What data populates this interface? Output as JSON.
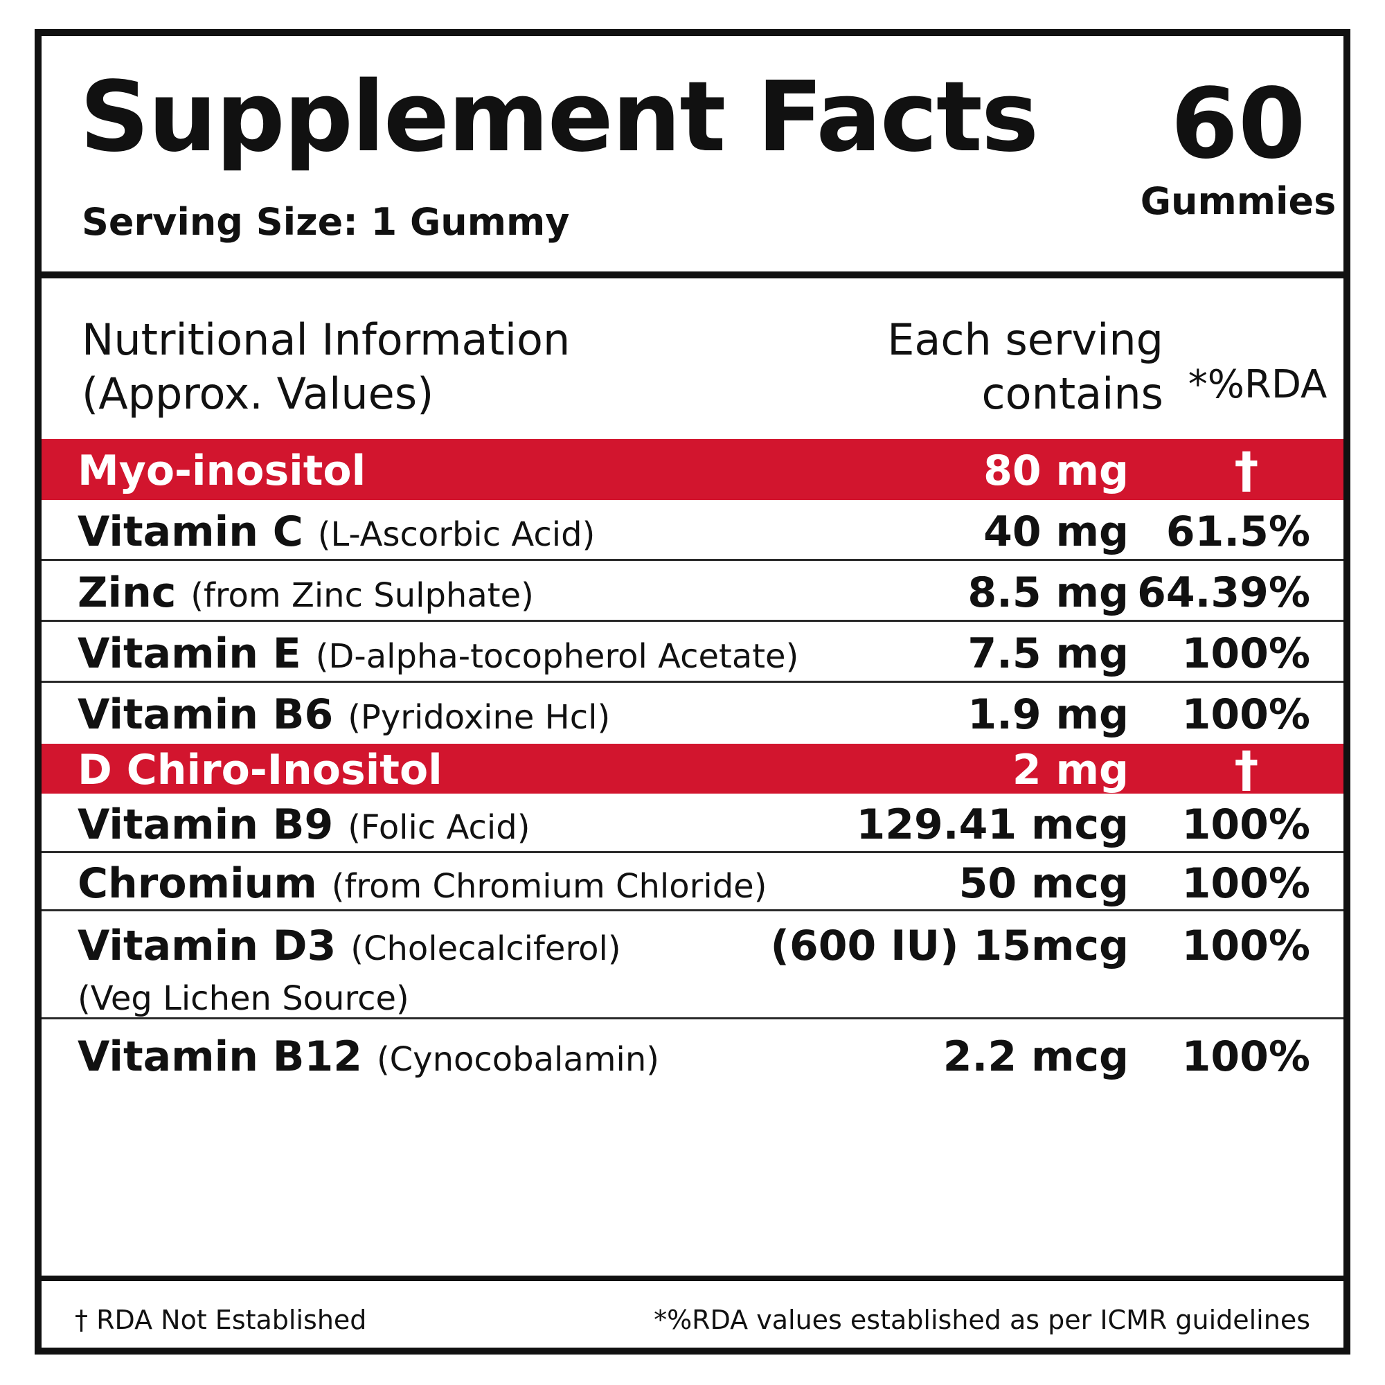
{
  "header": {
    "title": "Supplement Facts",
    "serving_size": "Serving Size: 1 Gummy",
    "count": "60",
    "count_unit": "Gummies"
  },
  "columns": {
    "nutritional_line1": "Nutritional Information",
    "nutritional_line2": "(Approx. Values)",
    "each_line1": "Each serving",
    "each_line2": "contains",
    "rda": "*%RDA"
  },
  "rows": [
    {
      "name": "Myo-inositol",
      "sub": "",
      "sub2": "",
      "amount": "80 mg",
      "rda": "†",
      "highlight": true
    },
    {
      "name": "Vitamin C",
      "sub": "(L-Ascorbic Acid)",
      "sub2": "",
      "amount": "40 mg",
      "rda": "61.5%",
      "highlight": false
    },
    {
      "name": "Zinc",
      "sub": "(from Zinc Sulphate)",
      "sub2": "",
      "amount": "8.5 mg",
      "rda": "64.39%",
      "highlight": false
    },
    {
      "name": "Vitamin E",
      "sub": "(D-alpha-tocopherol Acetate)",
      "sub2": "",
      "amount": "7.5 mg",
      "rda": "100%",
      "highlight": false
    },
    {
      "name": "Vitamin B6",
      "sub": "(Pyridoxine Hcl)",
      "sub2": "",
      "amount": "1.9 mg",
      "rda": "100%",
      "highlight": false
    },
    {
      "name": "D Chiro-Inositol",
      "sub": "",
      "sub2": "",
      "amount": "2 mg",
      "rda": "†",
      "highlight": true
    },
    {
      "name": "Vitamin B9",
      "sub": "(Folic Acid)",
      "sub2": "",
      "amount": "129.41 mcg",
      "rda": "100%",
      "highlight": false
    },
    {
      "name": "Chromium",
      "sub": "(from Chromium Chloride)",
      "sub2": "",
      "amount": "50 mcg",
      "rda": "100%",
      "highlight": false
    },
    {
      "name": "Vitamin D3",
      "sub": "(Cholecalciferol)",
      "sub2": "(Veg Lichen Source)",
      "amount": "(600 IU) 15mcg",
      "rda": "100%",
      "highlight": false
    },
    {
      "name": "Vitamin B12",
      "sub": "(Cynocobalamin)",
      "sub2": "",
      "amount": "2.2 mcg",
      "rda": "100%",
      "highlight": false
    }
  ],
  "footer": {
    "left": "† RDA Not Established",
    "right": "*%RDA values established as per ICMR guidelines"
  },
  "colors": {
    "highlight": "#d2152e",
    "text": "#111111"
  }
}
